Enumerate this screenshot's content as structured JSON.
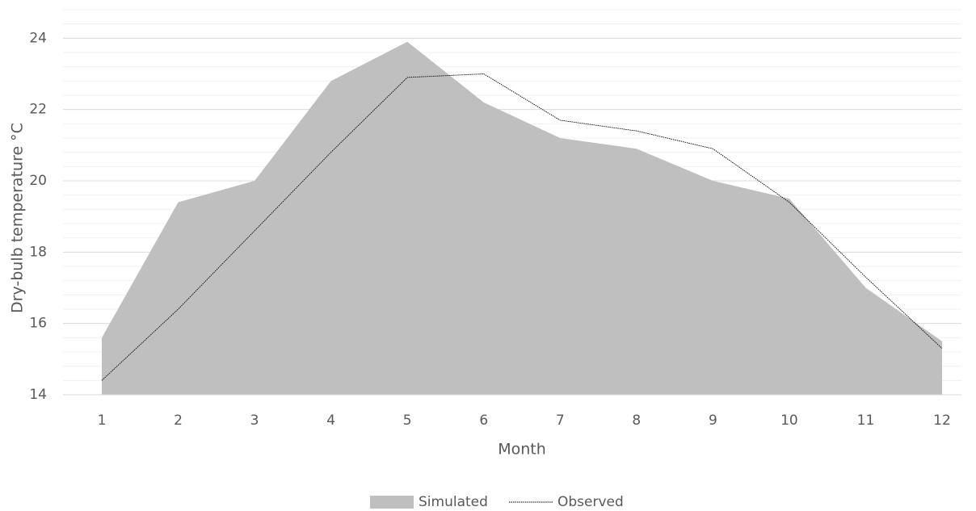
{
  "chart_data": {
    "type": "area-line",
    "y_label": "Dry-bulb temperature °C",
    "x_label": "Month",
    "categories": [
      "1",
      "2",
      "3",
      "4",
      "5",
      "6",
      "7",
      "8",
      "9",
      "10",
      "11",
      "12"
    ],
    "series": [
      {
        "name": "Simulated",
        "type": "area",
        "color": "#bfbfbf",
        "values": [
          15.6,
          19.4,
          20.0,
          22.8,
          23.9,
          22.2,
          21.2,
          20.9,
          20.0,
          19.5,
          17.0,
          15.5
        ]
      },
      {
        "name": "Observed",
        "type": "line",
        "color": "#000000",
        "values": [
          14.4,
          16.4,
          18.6,
          20.8,
          22.9,
          23.0,
          21.7,
          21.4,
          20.9,
          19.4,
          17.3,
          15.3
        ]
      }
    ],
    "ylim": [
      14,
      24.8
    ],
    "yticks": [
      14,
      16,
      18,
      20,
      22,
      24
    ],
    "grid": true,
    "minor_grid": true,
    "legend": "bottom"
  }
}
